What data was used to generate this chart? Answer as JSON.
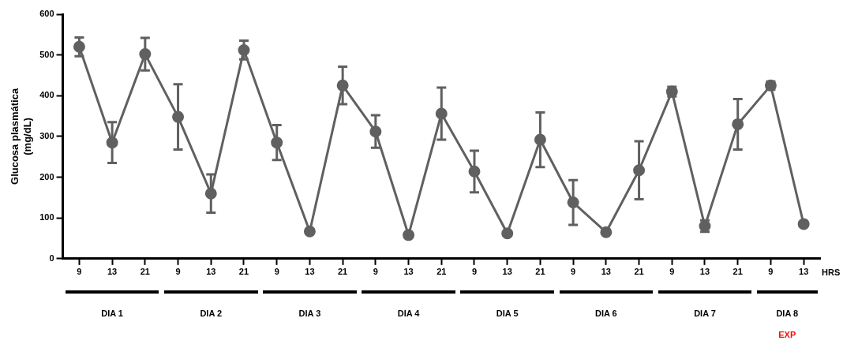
{
  "chart_data": {
    "type": "line",
    "ylabel": "Glucosa plasmática\n(mg/dL)",
    "xlabel": "HRS",
    "categories": [
      "9",
      "13",
      "21",
      "9",
      "13",
      "21",
      "9",
      "13",
      "21",
      "9",
      "13",
      "21",
      "9",
      "13",
      "21",
      "9",
      "13",
      "21",
      "9",
      "13",
      "21",
      "9",
      "13"
    ],
    "series": [
      {
        "color": "#606060",
        "values": [
          520,
          285,
          502,
          348,
          160,
          512,
          285,
          67,
          425,
          312,
          58,
          356,
          214,
          62,
          292,
          138,
          65,
          217,
          410,
          80,
          330,
          425,
          85
        ],
        "errors": [
          23,
          50,
          40,
          80,
          47,
          23,
          43,
          5,
          46,
          40,
          null,
          64,
          51,
          null,
          67,
          55,
          null,
          71,
          12,
          14,
          62,
          10,
          null
        ]
      }
    ],
    "ylim": [
      0,
      600
    ],
    "yticks": [
      0,
      100,
      200,
      300,
      400,
      500,
      600
    ],
    "grid": false,
    "legend": false,
    "marker": "circle",
    "line_style": "solid",
    "annotations": [
      "DIA 1",
      "DIA 2",
      "DIA 3",
      "DIA 4",
      "DIA 5",
      "DIA 6",
      "DIA 7",
      "DIA 8",
      "EXP"
    ]
  }
}
